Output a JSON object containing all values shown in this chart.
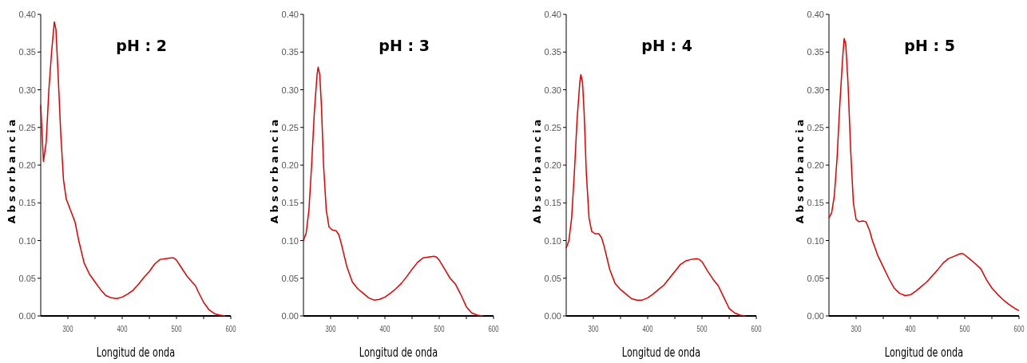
{
  "chart_data": [
    {
      "type": "line",
      "title": "pH : 2",
      "xlabel": "Longitud de onda",
      "ylabel": "Absorbancia",
      "xlim": [
        250,
        600
      ],
      "ylim": [
        0,
        0.4
      ],
      "xticks": [
        {
          "value": 350,
          "label": null
        },
        300,
        400,
        500,
        600,
        {
          "value": 450,
          "label": null
        },
        {
          "value": 550,
          "label": null
        }
      ],
      "yticks": [
        {
          "value": 0,
          "label": "0.00"
        },
        {
          "value": 0.05,
          "label": "0.05"
        },
        {
          "value": 0.1,
          "label": "0.10"
        },
        {
          "value": 0.15,
          "label": "0.15"
        },
        {
          "value": 0.2,
          "label": "0.20"
        },
        {
          "value": 0.25,
          "label": "0.25"
        },
        {
          "value": 0.3,
          "label": "0.30"
        },
        {
          "value": 0.35,
          "label": "0.35"
        },
        {
          "value": 0.4,
          "label": "0.40"
        }
      ],
      "x": [
        250,
        255,
        260,
        265,
        270,
        275,
        278,
        282,
        287,
        292,
        297,
        305,
        313,
        320,
        330,
        340,
        350,
        360,
        370,
        380,
        390,
        400,
        410,
        420,
        430,
        440,
        450,
        460,
        470,
        480,
        490,
        495,
        500,
        510,
        520,
        530,
        535,
        540,
        550,
        560,
        570,
        580,
        590
      ],
      "series": [
        {
          "color": "#e00000",
          "values": [
            0.28,
            0.205,
            0.23,
            0.3,
            0.35,
            0.39,
            0.38,
            0.32,
            0.24,
            0.18,
            0.155,
            0.14,
            0.125,
            0.1,
            0.07,
            0.055,
            0.045,
            0.035,
            0.027,
            0.024,
            0.023,
            0.025,
            0.029,
            0.034,
            0.042,
            0.051,
            0.059,
            0.069,
            0.075,
            0.076,
            0.077,
            0.077,
            0.074,
            0.063,
            0.052,
            0.044,
            0.04,
            0.032,
            0.018,
            0.008,
            0.003,
            0.001,
            0
          ]
        }
      ]
    },
    {
      "type": "line",
      "title": "pH : 3",
      "xlabel": "Longitud de onda",
      "ylabel": "Absorbancia",
      "xlim": [
        250,
        600
      ],
      "ylim": [
        0,
        0.4
      ],
      "xticks": [
        {
          "value": 350,
          "label": null
        },
        300,
        400,
        500,
        600,
        {
          "value": 450,
          "label": null
        },
        {
          "value": 550,
          "label": null
        }
      ],
      "yticks": [
        {
          "value": 0,
          "label": "0.00"
        },
        {
          "value": 0.05,
          "label": "0.05"
        },
        {
          "value": 0.1,
          "label": "0.10"
        },
        {
          "value": 0.15,
          "label": "0.15"
        },
        {
          "value": 0.2,
          "label": "0.20"
        },
        {
          "value": 0.25,
          "label": "0.25"
        },
        {
          "value": 0.3,
          "label": "0.30"
        },
        {
          "value": 0.35,
          "label": "0.35"
        },
        {
          "value": 0.4,
          "label": "0.40"
        }
      ],
      "x": [
        250,
        255,
        260,
        265,
        270,
        275,
        277,
        280,
        283,
        287,
        292,
        297,
        303,
        310,
        315,
        320,
        325,
        330,
        340,
        350,
        360,
        370,
        380,
        390,
        400,
        410,
        420,
        430,
        440,
        450,
        460,
        470,
        480,
        490,
        495,
        500,
        510,
        520,
        530,
        540,
        550,
        560,
        570,
        580
      ],
      "series": [
        {
          "color": "#e00000",
          "values": [
            0.1,
            0.11,
            0.14,
            0.2,
            0.27,
            0.32,
            0.33,
            0.32,
            0.28,
            0.2,
            0.14,
            0.118,
            0.114,
            0.113,
            0.108,
            0.095,
            0.08,
            0.065,
            0.045,
            0.036,
            0.03,
            0.024,
            0.021,
            0.022,
            0.025,
            0.03,
            0.036,
            0.043,
            0.052,
            0.062,
            0.071,
            0.077,
            0.078,
            0.079,
            0.078,
            0.074,
            0.062,
            0.05,
            0.042,
            0.028,
            0.012,
            0.004,
            0.001,
            0
          ]
        }
      ]
    },
    {
      "type": "line",
      "title": "pH : 4",
      "xlabel": "Longitud de onda",
      "ylabel": "Absorbancia",
      "xlim": [
        250,
        600
      ],
      "ylim": [
        0,
        0.4
      ],
      "xticks": [
        {
          "value": 350,
          "label": null
        },
        300,
        400,
        500,
        600,
        {
          "value": 450,
          "label": null
        },
        {
          "value": 550,
          "label": null
        }
      ],
      "yticks": [
        {
          "value": 0,
          "label": "0.00"
        },
        {
          "value": 0.05,
          "label": "0.05"
        },
        {
          "value": 0.1,
          "label": "0.10"
        },
        {
          "value": 0.15,
          "label": "0.15"
        },
        {
          "value": 0.2,
          "label": "0.20"
        },
        {
          "value": 0.25,
          "label": "0.25"
        },
        {
          "value": 0.3,
          "label": "0.30"
        },
        {
          "value": 0.35,
          "label": "0.35"
        },
        {
          "value": 0.4,
          "label": "0.40"
        }
      ],
      "x": [
        250,
        255,
        260,
        265,
        270,
        275,
        277,
        280,
        283,
        287,
        292,
        297,
        303,
        310,
        315,
        320,
        325,
        330,
        340,
        350,
        360,
        370,
        380,
        390,
        400,
        410,
        420,
        430,
        440,
        450,
        460,
        470,
        480,
        490,
        495,
        500,
        510,
        520,
        530,
        540,
        550,
        560,
        570,
        580
      ],
      "series": [
        {
          "color": "#e00000",
          "values": [
            0.09,
            0.1,
            0.13,
            0.19,
            0.26,
            0.31,
            0.32,
            0.31,
            0.27,
            0.19,
            0.13,
            0.112,
            0.109,
            0.109,
            0.104,
            0.092,
            0.077,
            0.062,
            0.043,
            0.035,
            0.029,
            0.023,
            0.021,
            0.021,
            0.024,
            0.029,
            0.035,
            0.041,
            0.05,
            0.059,
            0.068,
            0.073,
            0.075,
            0.076,
            0.075,
            0.072,
            0.06,
            0.049,
            0.04,
            0.025,
            0.01,
            0.004,
            0.001,
            0
          ]
        }
      ]
    },
    {
      "type": "line",
      "title": "pH : 5",
      "xlabel": "Longitud de onda",
      "ylabel": "Absorbancia",
      "xlim": [
        250,
        600
      ],
      "ylim": [
        0,
        0.4
      ],
      "xticks": [
        {
          "value": 350,
          "label": null
        },
        300,
        400,
        500,
        600,
        {
          "value": 450,
          "label": null
        },
        {
          "value": 550,
          "label": null
        }
      ],
      "yticks": [
        {
          "value": 0,
          "label": "0.00"
        },
        {
          "value": 0.05,
          "label": "0.05"
        },
        {
          "value": 0.1,
          "label": "0.10"
        },
        {
          "value": 0.15,
          "label": "0.15"
        },
        {
          "value": 0.2,
          "label": "0.20"
        },
        {
          "value": 0.25,
          "label": "0.25"
        },
        {
          "value": 0.3,
          "label": "0.30"
        },
        {
          "value": 0.35,
          "label": "0.35"
        },
        {
          "value": 0.4,
          "label": "0.40"
        }
      ],
      "x": [
        250,
        255,
        260,
        265,
        270,
        275,
        278,
        281,
        285,
        290,
        295,
        300,
        305,
        312,
        318,
        325,
        330,
        340,
        350,
        360,
        370,
        380,
        390,
        400,
        410,
        420,
        430,
        440,
        450,
        460,
        470,
        480,
        490,
        495,
        500,
        510,
        520,
        530,
        540,
        550,
        560,
        570,
        580,
        590,
        600
      ],
      "series": [
        {
          "color": "#e00000",
          "values": [
            0.13,
            0.137,
            0.16,
            0.21,
            0.28,
            0.34,
            0.368,
            0.36,
            0.31,
            0.22,
            0.15,
            0.128,
            0.125,
            0.126,
            0.125,
            0.113,
            0.1,
            0.08,
            0.065,
            0.05,
            0.037,
            0.03,
            0.027,
            0.028,
            0.033,
            0.039,
            0.045,
            0.053,
            0.061,
            0.07,
            0.076,
            0.079,
            0.082,
            0.083,
            0.081,
            0.075,
            0.069,
            0.062,
            0.048,
            0.037,
            0.029,
            0.022,
            0.016,
            0.011,
            0.007
          ]
        }
      ]
    }
  ]
}
